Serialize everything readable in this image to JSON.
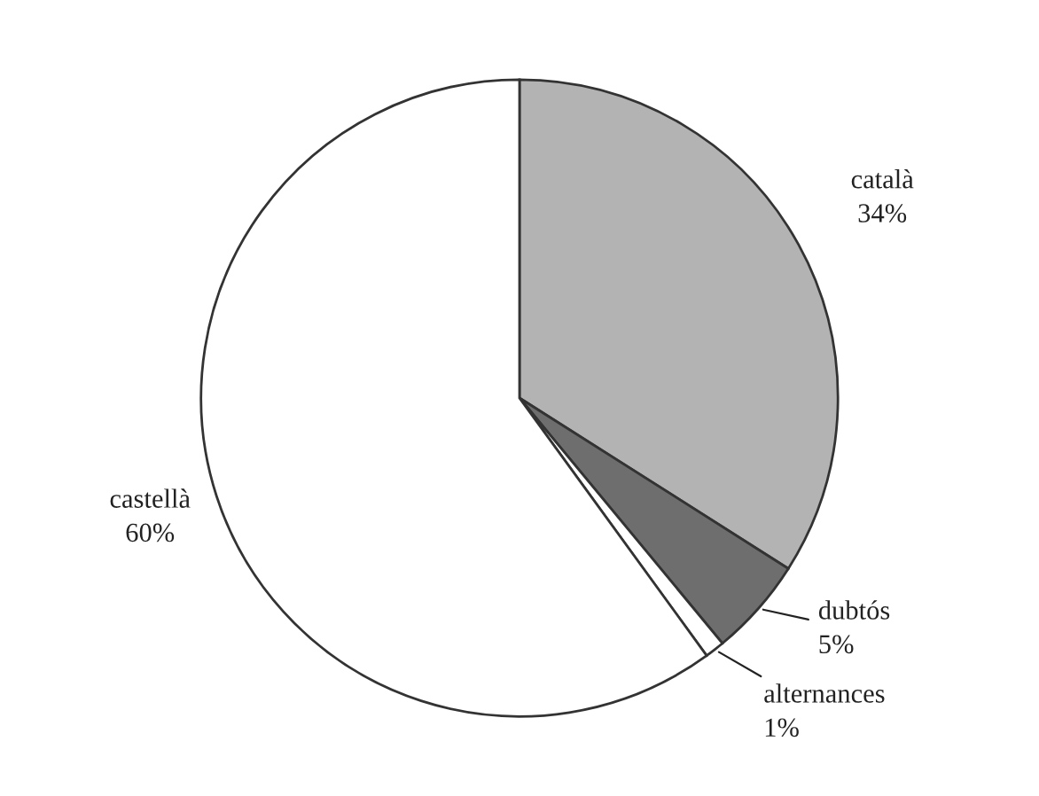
{
  "chart_data": {
    "type": "pie",
    "categories": [
      "català",
      "dubtós",
      "alternances",
      "castellà"
    ],
    "values": [
      34,
      5,
      1,
      60
    ],
    "value_labels": [
      "34%",
      "5%",
      "1%",
      "60%"
    ],
    "colors": [
      "#b3b3b3",
      "#6e6e6e",
      "#ffffff",
      "#ffffff"
    ]
  }
}
